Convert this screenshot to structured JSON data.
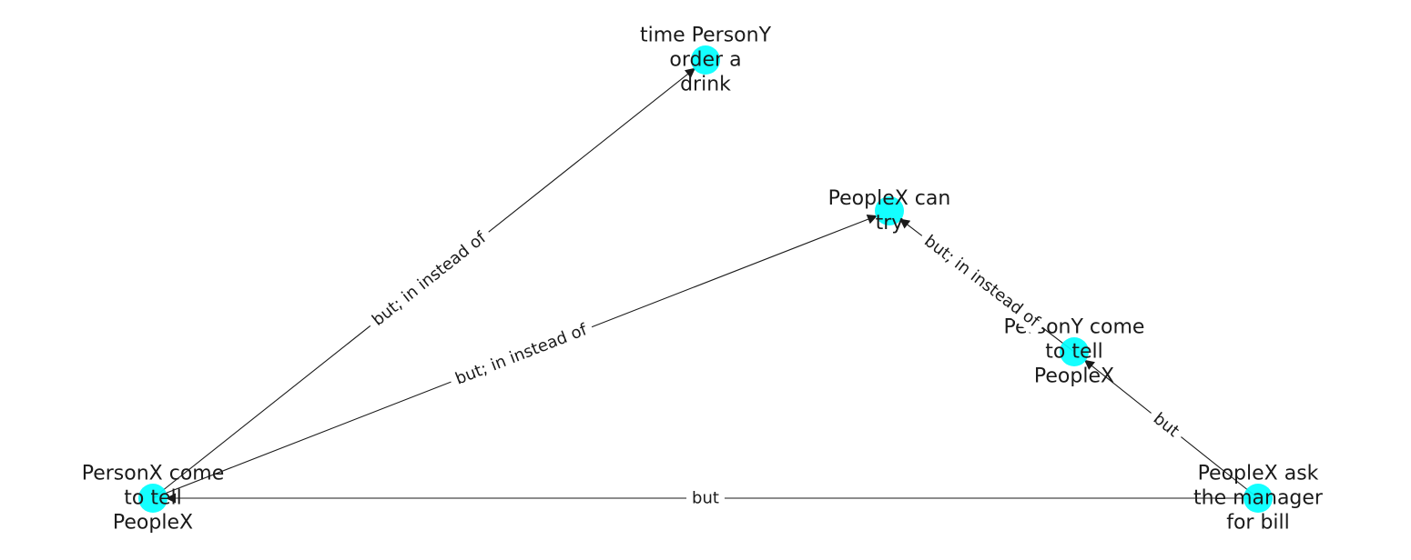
{
  "diagram": {
    "type": "directed-graph",
    "colors": {
      "node": "#00ffff",
      "edge": "#1a1a1a",
      "text": "#1a1a1a",
      "background": "#ffffff"
    },
    "nodes": [
      {
        "id": "n1",
        "label": [
          "time PersonY",
          "order a",
          "drink"
        ]
      },
      {
        "id": "n2",
        "label": [
          "PeopleX can",
          "try"
        ]
      },
      {
        "id": "n3",
        "label": [
          "PersonY come",
          "to tell",
          "PeopleX"
        ]
      },
      {
        "id": "n4",
        "label": [
          "PersonX come",
          "to tell",
          "PeopleX"
        ]
      },
      {
        "id": "n5",
        "label": [
          "PeopleX ask",
          "the manager",
          "for bill"
        ]
      }
    ],
    "edges": [
      {
        "source": "n4",
        "target": "n1",
        "label": "but;  in instead of"
      },
      {
        "source": "n4",
        "target": "n2",
        "label": "but;  in instead of"
      },
      {
        "source": "n3",
        "target": "n2",
        "label": "but;  in instead of"
      },
      {
        "source": "n5",
        "target": "n3",
        "label": "but"
      },
      {
        "source": "n5",
        "target": "n4",
        "label": "but"
      }
    ]
  }
}
